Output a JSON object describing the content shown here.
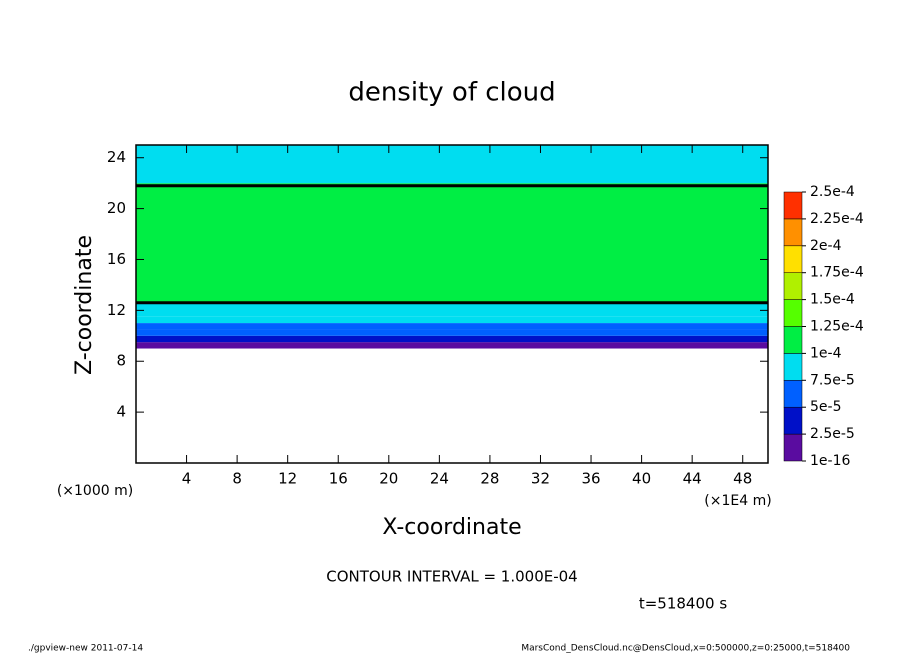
{
  "chart_data": {
    "type": "contourf",
    "title": "density of cloud",
    "xlabel": "X-coordinate",
    "ylabel": "Z-coordinate",
    "x_unit_label": "(×1E4 m)",
    "y_unit_label": "(×1000 m)",
    "xlim": [
      0,
      50
    ],
    "ylim": [
      0,
      25
    ],
    "xticks": [
      4,
      8,
      12,
      16,
      20,
      24,
      28,
      32,
      36,
      40,
      44,
      48
    ],
    "yticks": [
      4,
      8,
      12,
      16,
      20,
      24
    ],
    "z_edges": [
      9,
      9.5,
      10,
      10.5,
      11,
      11.5,
      12.5,
      22,
      25
    ],
    "band_values": [
      1e-05,
      3e-05,
      5.5e-05,
      7e-05,
      8.5e-05,
      9.5e-05,
      0.00011,
      8.5e-05
    ],
    "contour_z": [
      12.6,
      21.8
    ],
    "levels": [
      {
        "value": 1e-16,
        "label": "1e-16"
      },
      {
        "value": 2.5e-05,
        "label": "2.5e-5"
      },
      {
        "value": 5e-05,
        "label": "5e-5"
      },
      {
        "value": 7.5e-05,
        "label": "7.5e-5"
      },
      {
        "value": 0.0001,
        "label": "1e-4"
      },
      {
        "value": 0.000125,
        "label": "1.25e-4"
      },
      {
        "value": 0.00015,
        "label": "1.5e-4"
      },
      {
        "value": 0.000175,
        "label": "1.75e-4"
      },
      {
        "value": 0.0002,
        "label": "2e-4"
      },
      {
        "value": 0.000225,
        "label": "2.25e-4"
      },
      {
        "value": 0.00025,
        "label": "2.5e-4"
      }
    ],
    "level_colors": [
      "#5a0ca0",
      "#0010c8",
      "#0060ff",
      "#00ddf0",
      "#00ee44",
      "#55ff00",
      "#b0f000",
      "#ffe000",
      "#ff9000",
      "#ff3000"
    ],
    "annotations": {
      "contour_interval": "CONTOUR INTERVAL = 1.000E-04",
      "time": "t=518400 s",
      "footer_left": "./gpview-new  2011-07-14",
      "footer_right": "MarsCond_DensCloud.nc@DensCloud,x=0:500000,z=0:25000,t=518400"
    }
  }
}
